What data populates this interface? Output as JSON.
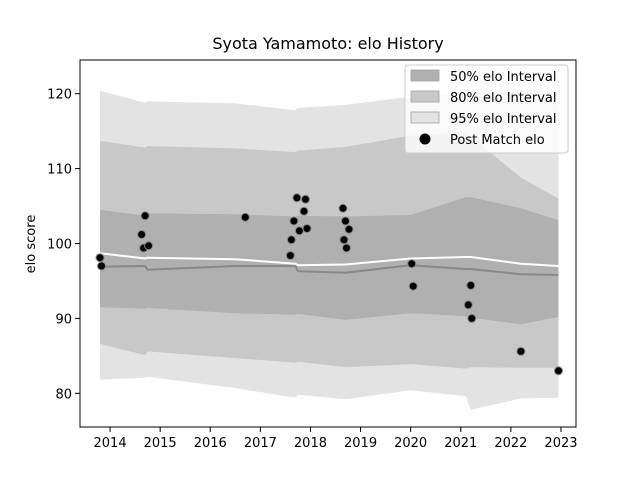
{
  "chart_data": {
    "type": "line",
    "title": "Syota Yamamoto: elo History",
    "xlabel": "",
    "ylabel": "elo score",
    "xlim": [
      2013.4,
      2023.3
    ],
    "ylim": [
      75.5,
      124.5
    ],
    "x_ticks": [
      2014,
      2015,
      2016,
      2017,
      2018,
      2019,
      2020,
      2021,
      2022,
      2023
    ],
    "y_ticks": [
      80,
      90,
      100,
      110,
      120
    ],
    "grid": false,
    "legend_position": "top-right",
    "legend": [
      "50% elo Interval",
      "80% elo Interval",
      "95% elo Interval",
      "Post Match elo"
    ],
    "colors": {
      "band_50": "#b0b0b0",
      "band_80": "#c8c8c8",
      "band_95": "#e3e3e3",
      "median_line": "#888888",
      "mean_line": "#ffffff",
      "points": "#000000"
    },
    "bands": {
      "x": [
        2013.8,
        2014.7,
        2014.75,
        2016.5,
        2017.7,
        2017.75,
        2018.7,
        2020.0,
        2021.1,
        2021.2,
        2022.2,
        2022.95
      ],
      "band_95_lo": [
        81.8,
        82.1,
        82.2,
        80.7,
        79.4,
        79.8,
        79.2,
        80.4,
        79.6,
        77.8,
        79.3,
        79.4
      ],
      "band_95_hi": [
        120.4,
        118.8,
        119.0,
        118.7,
        117.8,
        118.1,
        118.5,
        119.6,
        120.0,
        120.1,
        120.3,
        120.4
      ],
      "band_80_lo": [
        86.6,
        85.1,
        85.6,
        84.7,
        84.1,
        84.2,
        83.5,
        83.9,
        83.3,
        83.5,
        83.4,
        83.4
      ],
      "band_80_hi": [
        113.7,
        112.8,
        113.0,
        112.7,
        112.2,
        112.4,
        112.9,
        114.4,
        114.9,
        114.3,
        108.8,
        106.0
      ],
      "band_50_lo": [
        91.5,
        91.3,
        91.4,
        90.7,
        90.5,
        90.6,
        89.8,
        90.7,
        90.3,
        90.1,
        89.2,
        90.2
      ],
      "band_50_hi": [
        104.5,
        103.7,
        104.0,
        103.9,
        103.6,
        103.7,
        103.6,
        103.8,
        106.2,
        106.2,
        104.7,
        103.1
      ],
      "median": [
        96.9,
        97.0,
        96.5,
        97.0,
        97.0,
        96.3,
        96.1,
        97.1,
        96.6,
        96.6,
        95.9,
        95.8
      ],
      "mean": [
        98.7,
        98.0,
        98.1,
        97.9,
        97.3,
        97.1,
        97.2,
        98.0,
        98.2,
        98.2,
        97.3,
        97.0
      ]
    },
    "points": {
      "x": [
        2013.8,
        2013.83,
        2014.63,
        2014.67,
        2014.7,
        2014.77,
        2016.7,
        2017.6,
        2017.62,
        2017.67,
        2017.73,
        2017.78,
        2017.87,
        2017.9,
        2017.93,
        2018.65,
        2018.67,
        2018.7,
        2018.72,
        2018.77,
        2020.02,
        2020.05,
        2021.15,
        2021.2,
        2021.22,
        2022.2,
        2022.95
      ],
      "y": [
        98.1,
        97.0,
        101.2,
        99.4,
        103.7,
        99.7,
        103.5,
        98.4,
        100.5,
        103.0,
        106.1,
        101.7,
        104.3,
        105.9,
        102.0,
        104.7,
        100.5,
        103.0,
        99.4,
        101.9,
        97.3,
        94.3,
        91.8,
        94.4,
        90.0,
        85.6,
        83.0
      ]
    }
  }
}
